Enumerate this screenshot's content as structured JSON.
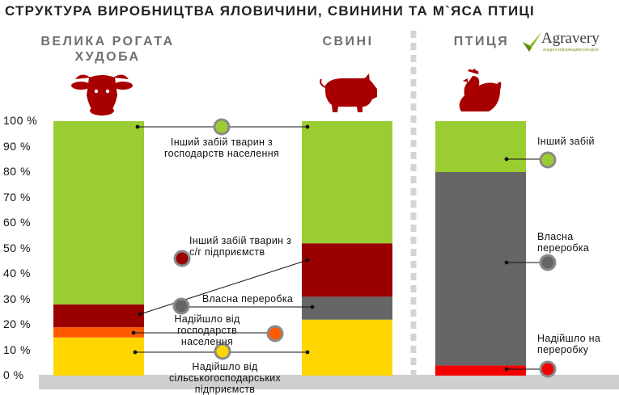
{
  "title": "СТРУКТУРА ВИРОБНИЦТВА ЯЛОВИЧИНИ, СВИНИНИ ТА М`ЯСА ПТИЦІ",
  "logo": {
    "text": "Agravery",
    "subtitle": "аграрні інформаційні ресурси",
    "icon": "check-mark-icon"
  },
  "colors": {
    "green": "#9ACD32",
    "dark_red": "#9B0000",
    "gray": "#666666",
    "orange": "#FF5A00",
    "yellow": "#FFD700",
    "red": "#F20000"
  },
  "icons": [
    "cow-head-icon",
    "pig-icon",
    "hen-icon"
  ],
  "chart_data": {
    "type": "bar",
    "stacked": true,
    "ylim": [
      0,
      100
    ],
    "yticks": [
      {
        "value": 0,
        "label": "0 %"
      },
      {
        "value": 10,
        "label": "10 %"
      },
      {
        "value": 20,
        "label": "20 %"
      },
      {
        "value": 30,
        "label": "30 %"
      },
      {
        "value": 40,
        "label": "40 %"
      },
      {
        "value": 50,
        "label": "50 %"
      },
      {
        "value": 60,
        "label": "60 %"
      },
      {
        "value": 70,
        "label": "70 %"
      },
      {
        "value": 80,
        "label": "80 %"
      },
      {
        "value": 90,
        "label": "90 %"
      },
      {
        "value": 100,
        "label": "100 %"
      }
    ],
    "grid": false,
    "columns": [
      {
        "name": "ВЕЛИКА РОГАТА ХУДОБА",
        "segments": [
          {
            "label": "Надійшло від сільськогосподарських підприємств",
            "value": 15,
            "color": "#FFD700"
          },
          {
            "label": "Надійшло від господарств населення",
            "value": 4,
            "color": "#FF5A00"
          },
          {
            "label": "Інший забій тварин з с/г підприємств",
            "value": 9,
            "color": "#9B0000"
          },
          {
            "label": "Інший забій тварин з господарств населення",
            "value": 72,
            "color": "#9ACD32"
          }
        ]
      },
      {
        "name": "СВИНІ",
        "segments": [
          {
            "label": "Надійшло від сільськогосподарських підприємств",
            "value": 22,
            "color": "#FFD700"
          },
          {
            "label": "Власна переробка",
            "value": 9,
            "color": "#666666"
          },
          {
            "label": "Інший забій тварин з с/г підприємств",
            "value": 21,
            "color": "#9B0000"
          },
          {
            "label": "Інший забій тварин з господарств населення",
            "value": 48,
            "color": "#9ACD32"
          }
        ]
      },
      {
        "name": "ПТИЦЯ",
        "segments": [
          {
            "label": "Надійшло на переробку",
            "value": 4,
            "color": "#F20000"
          },
          {
            "label": "Власна переробка",
            "value": 76,
            "color": "#666666"
          },
          {
            "label": "Інший забій",
            "value": 20,
            "color": "#9ACD32"
          }
        ]
      }
    ],
    "labels": {
      "other_households": "Інший забій тварин з господарств населення",
      "other_agri": "Інший забій тварин з с/г підприємств",
      "own_processing": "Власна переробка",
      "from_households": "Надійшло від господарств населення",
      "from_agri": "Надійшло від сільськогосподарських підприємств",
      "poultry_other": "Інший забій",
      "poultry_own": "Власна переробка",
      "poultry_received": "Надійшло на переробку"
    }
  }
}
